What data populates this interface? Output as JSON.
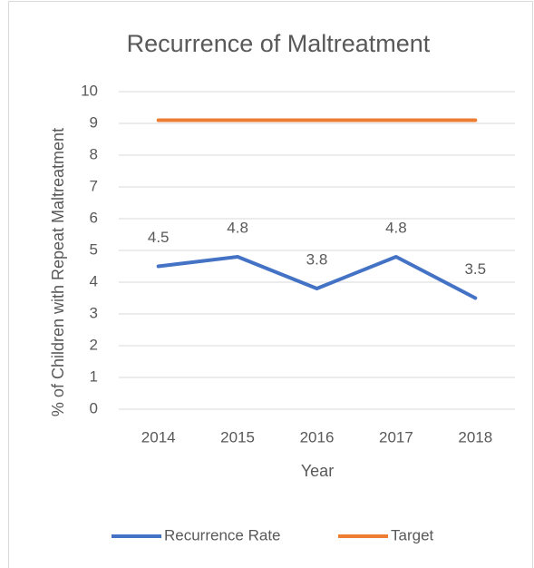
{
  "chart_data": {
    "type": "line",
    "title": "Recurrence of Maltreatment",
    "x_label": "Year",
    "y_label": "% of Children with Repeat Maltreatment",
    "categories": [
      "2014",
      "2015",
      "2016",
      "2017",
      "2018"
    ],
    "series": [
      {
        "name": "Recurrence Rate",
        "color": "#4472c4",
        "values": [
          4.5,
          4.8,
          3.8,
          4.8,
          3.5
        ],
        "data_labels": true
      },
      {
        "name": "Target",
        "color": "#ed7d31",
        "values": [
          9.1,
          9.1,
          9.1,
          9.1,
          9.1
        ],
        "data_labels": false
      }
    ],
    "ylim": [
      0,
      10
    ],
    "yticks": [
      0,
      1,
      2,
      3,
      4,
      5,
      6,
      7,
      8,
      9,
      10
    ],
    "grid": true,
    "legend": "bottom"
  }
}
